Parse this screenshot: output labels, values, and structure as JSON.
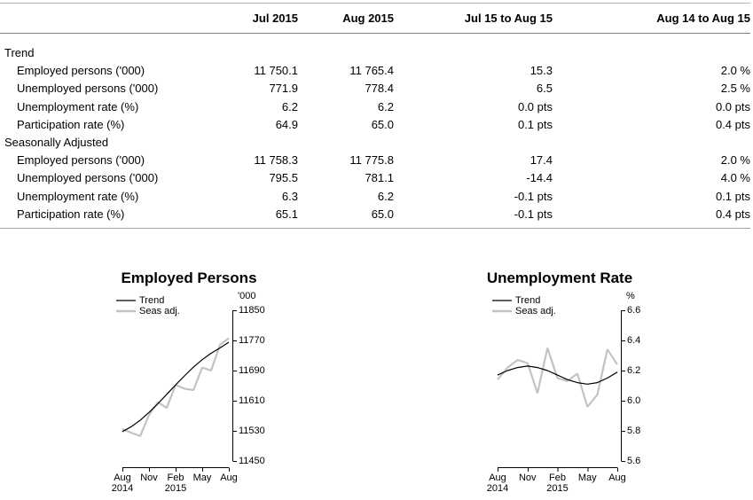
{
  "table": {
    "columns": [
      "",
      "Jul 2015",
      "Aug 2015",
      "Jul 15 to Aug 15",
      "Aug 14 to Aug 15"
    ],
    "sections": [
      {
        "label": "Trend",
        "rows": [
          {
            "label": "Employed persons ('000)",
            "values": [
              "11 750.1",
              "11 765.4",
              "15.3",
              "2.0 %"
            ]
          },
          {
            "label": "Unemployed persons ('000)",
            "values": [
              "771.9",
              "778.4",
              "6.5",
              "2.5 %"
            ]
          },
          {
            "label": "Unemployment rate (%)",
            "values": [
              "6.2",
              "6.2",
              "0.0 pts",
              "0.0 pts"
            ]
          },
          {
            "label": "Participation rate (%)",
            "values": [
              "64.9",
              "65.0",
              "0.1 pts",
              "0.4 pts"
            ]
          }
        ]
      },
      {
        "label": "Seasonally Adjusted",
        "rows": [
          {
            "label": "Employed persons ('000)",
            "values": [
              "11 758.3",
              "11 775.8",
              "17.4",
              "2.0 %"
            ]
          },
          {
            "label": "Unemployed persons ('000)",
            "values": [
              "795.5",
              "781.1",
              "-14.4",
              "4.0 %"
            ]
          },
          {
            "label": "Unemployment rate (%)",
            "values": [
              "6.3",
              "6.2",
              "-0.1 pts",
              "0.1 pts"
            ]
          },
          {
            "label": "Participation rate (%)",
            "values": [
              "65.1",
              "65.0",
              "-0.1 pts",
              "0.4 pts"
            ]
          }
        ]
      }
    ]
  },
  "chart_data": [
    {
      "type": "line",
      "title": "Employed Persons",
      "ylabel": "'000",
      "ylim": [
        11450,
        11850
      ],
      "yticks": [
        "11850",
        "11770",
        "11690",
        "11610",
        "11530",
        "11450"
      ],
      "ytick_values": [
        11850,
        11770,
        11690,
        11610,
        11530,
        11450
      ],
      "x": [
        "Aug 2014",
        "Sep 2014",
        "Oct 2014",
        "Nov 2014",
        "Dec 2014",
        "Jan 2015",
        "Feb 2015",
        "Mar 2015",
        "Apr 2015",
        "May 2015",
        "Jun 2015",
        "Jul 2015",
        "Aug 2015"
      ],
      "xticks": [
        {
          "pos": 0,
          "line1": "Aug",
          "line2": "2014"
        },
        {
          "pos": 3,
          "line1": "Nov",
          "line2": ""
        },
        {
          "pos": 6,
          "line1": "Feb",
          "line2": "2015"
        },
        {
          "pos": 9,
          "line1": "May",
          "line2": ""
        },
        {
          "pos": 12,
          "line1": "Aug",
          "line2": ""
        }
      ],
      "legend": [
        "Trend",
        "Seas adj."
      ],
      "legend_position": "top-left",
      "grid": false,
      "series": [
        {
          "name": "Trend",
          "values": [
            11528,
            11541,
            11558,
            11579,
            11602,
            11627,
            11652,
            11676,
            11699,
            11719,
            11736,
            11750.1,
            11765.4
          ]
        },
        {
          "name": "Seas adj.",
          "values": [
            11535,
            11525,
            11516,
            11572,
            11606,
            11591,
            11652,
            11642,
            11638,
            11698,
            11690,
            11758.3,
            11775.8
          ]
        }
      ]
    },
    {
      "type": "line",
      "title": "Unemployment Rate",
      "ylabel": "%",
      "ylim": [
        5.6,
        6.6
      ],
      "yticks": [
        "6.6",
        "6.4",
        "6.2",
        "6.0",
        "5.8",
        "5.6"
      ],
      "ytick_values": [
        6.6,
        6.4,
        6.2,
        6.0,
        5.8,
        5.6
      ],
      "x": [
        "Aug 2014",
        "Sep 2014",
        "Oct 2014",
        "Nov 2014",
        "Dec 2014",
        "Jan 2015",
        "Feb 2015",
        "Mar 2015",
        "Apr 2015",
        "May 2015",
        "Jun 2015",
        "Jul 2015",
        "Aug 2015"
      ],
      "xticks": [
        {
          "pos": 0,
          "line1": "Aug",
          "line2": "2014"
        },
        {
          "pos": 3,
          "line1": "Nov",
          "line2": ""
        },
        {
          "pos": 6,
          "line1": "Feb",
          "line2": "2015"
        },
        {
          "pos": 9,
          "line1": "May",
          "line2": ""
        },
        {
          "pos": 12,
          "line1": "Aug",
          "line2": ""
        }
      ],
      "legend": [
        "Trend",
        "Seas adj."
      ],
      "legend_position": "top-left",
      "grid": false,
      "series": [
        {
          "name": "Trend",
          "values": [
            6.17,
            6.2,
            6.22,
            6.23,
            6.22,
            6.2,
            6.17,
            6.14,
            6.12,
            6.11,
            6.12,
            6.15,
            6.19
          ]
        },
        {
          "name": "Seas adj.",
          "values": [
            6.14,
            6.22,
            6.27,
            6.25,
            6.05,
            6.35,
            6.15,
            6.13,
            6.18,
            5.96,
            6.04,
            6.34,
            6.24
          ]
        }
      ]
    }
  ],
  "colors": {
    "trend_line": "#000000",
    "seas_adj_line": "#c3c3c3",
    "axis": "#000000",
    "rule_light": "#b2b2b2",
    "rule_dark": "#808080",
    "text": "#000000",
    "background": "#ffffff"
  }
}
